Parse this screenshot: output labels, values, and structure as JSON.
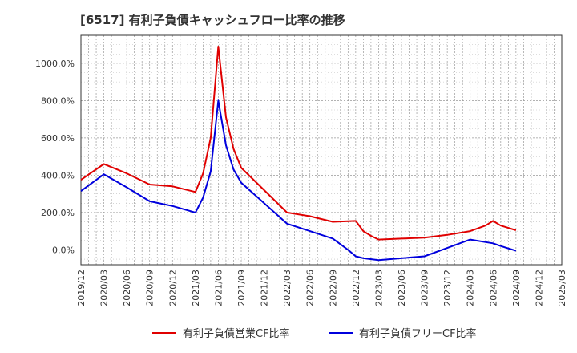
{
  "chart_data": {
    "type": "line",
    "title": "[6517]  有利子負債キャッシュフロー比率の推移",
    "xlabel": "",
    "ylabel": "",
    "x_ticks": [
      "2019/12",
      "2020/03",
      "2020/06",
      "2020/09",
      "2020/12",
      "2021/03",
      "2021/06",
      "2021/09",
      "2021/12",
      "2022/03",
      "2022/06",
      "2022/09",
      "2022/12",
      "2023/03",
      "2023/06",
      "2023/09",
      "2023/12",
      "2024/03",
      "2024/06",
      "2024/09",
      "2024/12",
      "2025/03"
    ],
    "y_ticks": [
      "0.0%",
      "200.0%",
      "400.0%",
      "600.0%",
      "800.0%",
      "1000.0%"
    ],
    "y_tick_values": [
      0,
      200,
      400,
      600,
      800,
      1000
    ],
    "ylim": [
      -80,
      1150
    ],
    "xlim": [
      0,
      63
    ],
    "grid": true,
    "legend_position": "bottom",
    "series": [
      {
        "name": "有利子負債営業CF比率",
        "color": "#e00000",
        "points": [
          [
            0,
            375
          ],
          [
            3,
            460
          ],
          [
            6,
            410
          ],
          [
            9,
            350
          ],
          [
            12,
            340
          ],
          [
            15,
            310
          ],
          [
            16,
            410
          ],
          [
            17,
            600
          ],
          [
            18,
            1090
          ],
          [
            19,
            710
          ],
          [
            20,
            540
          ],
          [
            21,
            440
          ],
          [
            24,
            320
          ],
          [
            27,
            200
          ],
          [
            30,
            180
          ],
          [
            33,
            150
          ],
          [
            36,
            155
          ],
          [
            37,
            100
          ],
          [
            38,
            75
          ],
          [
            39,
            55
          ],
          [
            42,
            60
          ],
          [
            45,
            65
          ],
          [
            48,
            80
          ],
          [
            51,
            100
          ],
          [
            53,
            130
          ],
          [
            54,
            155
          ],
          [
            55,
            130
          ],
          [
            57,
            105
          ]
        ]
      },
      {
        "name": "有利子負債フリーCF比率",
        "color": "#0000dd",
        "points": [
          [
            0,
            315
          ],
          [
            3,
            405
          ],
          [
            6,
            335
          ],
          [
            9,
            260
          ],
          [
            12,
            235
          ],
          [
            15,
            200
          ],
          [
            16,
            280
          ],
          [
            17,
            420
          ],
          [
            18,
            800
          ],
          [
            19,
            560
          ],
          [
            20,
            430
          ],
          [
            21,
            360
          ],
          [
            24,
            250
          ],
          [
            27,
            140
          ],
          [
            30,
            100
          ],
          [
            33,
            60
          ],
          [
            35,
            0
          ],
          [
            36,
            -35
          ],
          [
            37,
            -45
          ],
          [
            39,
            -55
          ],
          [
            42,
            -45
          ],
          [
            45,
            -35
          ],
          [
            48,
            10
          ],
          [
            51,
            55
          ],
          [
            54,
            35
          ],
          [
            55,
            20
          ],
          [
            57,
            -5
          ]
        ]
      }
    ]
  }
}
